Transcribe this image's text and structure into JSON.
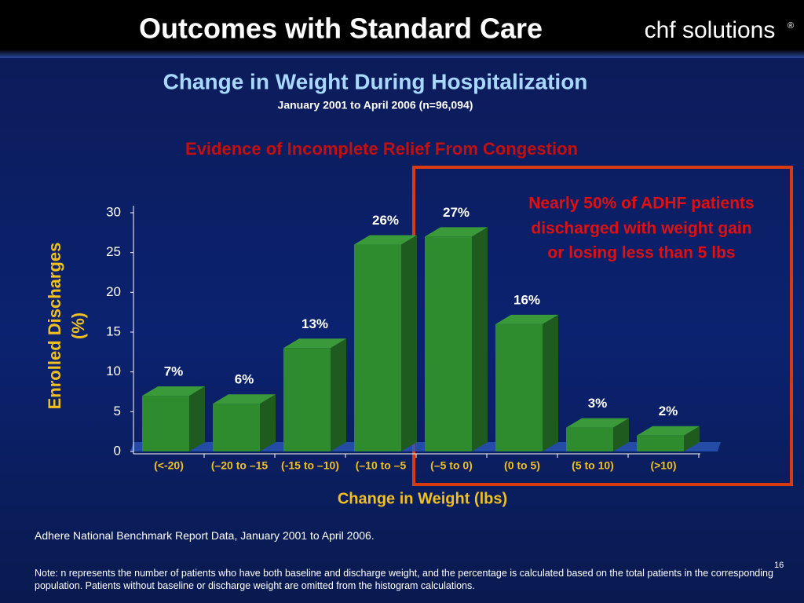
{
  "header": {
    "title": "Outcomes with Standard Care",
    "logo": "chf solutions",
    "logo_mark": "®"
  },
  "chart_data": {
    "type": "bar",
    "title": "Change in Weight During Hospitalization",
    "subtitle": "January 2001 to April 2006 (n=96,094)",
    "headline": "Evidence of Incomplete Relief From Congestion",
    "annotation": [
      "Nearly 50% of ADHF patients",
      "discharged with weight gain",
      "or losing less than 5 lbs"
    ],
    "y_label": [
      "Enrolled Discharges",
      "(%)"
    ],
    "x_label": "Change in Weight (lbs)",
    "categories": [
      "(<-20)",
      "(–20 to –15",
      "(-15 to –10)",
      "(–10 to –5",
      "(–5 to 0)",
      "(0 to 5)",
      "(5 to 10)",
      "(>10)"
    ],
    "values": [
      7,
      6,
      13,
      26,
      27,
      16,
      3,
      2
    ],
    "value_labels": [
      "7%",
      "6%",
      "13%",
      "26%",
      "27%",
      "16%",
      "3%",
      "2%"
    ],
    "color": "#2e8b2e",
    "ylim": [
      0,
      30
    ],
    "yticks": [
      0,
      5,
      10,
      15,
      20,
      25,
      30
    ]
  },
  "footer": {
    "source": "Adhere National Benchmark Report Data, January 2001 to April 2006.",
    "note": "Note: n represents the number of patients who have both baseline and discharge weight, and the percentage is calculated based on the total patients in the corresponding population. Patients without baseline or discharge weight are omitted from the histogram calculations.",
    "slide_number": 16
  }
}
